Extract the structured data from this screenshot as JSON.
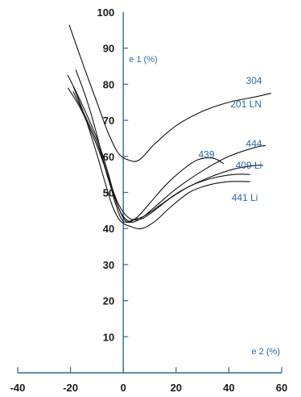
{
  "chart_data": {
    "type": "line",
    "xlabel": "e 2 (%)",
    "ylabel": "e 1 (%)",
    "xlim": [
      -40,
      60
    ],
    "ylim": [
      0,
      100
    ],
    "x_ticks": [
      -40,
      -20,
      0,
      20,
      40,
      60
    ],
    "y_ticks": [
      10,
      20,
      30,
      40,
      50,
      60,
      70,
      80,
      90,
      100
    ],
    "series": [
      {
        "name": "304",
        "points": [
          [
            -20.5,
            96.5
          ],
          [
            -15,
            85
          ],
          [
            -10,
            75
          ],
          [
            -6,
            67
          ],
          [
            -2,
            61
          ],
          [
            2,
            59
          ],
          [
            6,
            59
          ],
          [
            12,
            63.5
          ],
          [
            20,
            68.5
          ],
          [
            30,
            72.5
          ],
          [
            40,
            75
          ],
          [
            50,
            76.5
          ],
          [
            56,
            77.5
          ]
        ]
      },
      {
        "name": "201 LN",
        "points": [
          [
            -21,
            79
          ],
          [
            -16,
            73
          ],
          [
            -10,
            63
          ],
          [
            -6,
            55
          ],
          [
            -2,
            47
          ],
          [
            2,
            43
          ],
          [
            6,
            42.5
          ],
          [
            10,
            44
          ],
          [
            18,
            48.5
          ],
          [
            26,
            52
          ],
          [
            34,
            54
          ],
          [
            42,
            55
          ],
          [
            48,
            55
          ]
        ]
      },
      {
        "name": "444",
        "points": [
          [
            -21,
            82.5
          ],
          [
            -16,
            75
          ],
          [
            -10,
            65
          ],
          [
            -6,
            56
          ],
          [
            -2,
            46
          ],
          [
            2,
            42
          ],
          [
            6,
            42.5
          ],
          [
            12,
            46
          ],
          [
            20,
            51
          ],
          [
            30,
            56
          ],
          [
            40,
            60
          ],
          [
            50,
            62.5
          ],
          [
            54,
            63
          ]
        ]
      },
      {
        "name": "439",
        "points": [
          [
            -18,
            84
          ],
          [
            -14,
            76
          ],
          [
            -10,
            66
          ],
          [
            -7,
            57
          ],
          [
            -3,
            48
          ],
          [
            1,
            42
          ],
          [
            5,
            43
          ],
          [
            10,
            47
          ],
          [
            16,
            52
          ],
          [
            22,
            56
          ],
          [
            28,
            59
          ],
          [
            34,
            59.5
          ],
          [
            38,
            58
          ]
        ]
      },
      {
        "name": "409 Li",
        "points": [
          [
            -19,
            78
          ],
          [
            -15,
            72
          ],
          [
            -10,
            64
          ],
          [
            -6,
            55
          ],
          [
            -3,
            47
          ],
          [
            0,
            42
          ],
          [
            4,
            42.5
          ],
          [
            8,
            43.5
          ],
          [
            14,
            46.5
          ],
          [
            22,
            50.5
          ],
          [
            32,
            54
          ],
          [
            42,
            56.5
          ],
          [
            50,
            57.5
          ],
          [
            53,
            57.5
          ]
        ]
      },
      {
        "name": "441 Li",
        "points": [
          [
            -19,
            79.5
          ],
          [
            -15,
            72
          ],
          [
            -11,
            63
          ],
          [
            -7,
            53
          ],
          [
            -4,
            46
          ],
          [
            -1,
            42
          ],
          [
            3,
            40.5
          ],
          [
            7,
            40
          ],
          [
            12,
            42
          ],
          [
            18,
            46
          ],
          [
            25,
            50
          ],
          [
            32,
            52
          ],
          [
            40,
            53
          ],
          [
            48,
            53
          ]
        ]
      }
    ],
    "labels": [
      {
        "text": "304",
        "x": 49.5,
        "y": 81
      },
      {
        "text": "201 LN",
        "x": 46.5,
        "y": 74.5
      },
      {
        "text": "444",
        "x": 49.5,
        "y": 63.5
      },
      {
        "text": "439",
        "x": 31.5,
        "y": 60.5
      },
      {
        "text": "409 Li",
        "x": 47.5,
        "y": 57.5
      },
      {
        "text": "441 Li",
        "x": 46,
        "y": 48.5
      }
    ]
  }
}
